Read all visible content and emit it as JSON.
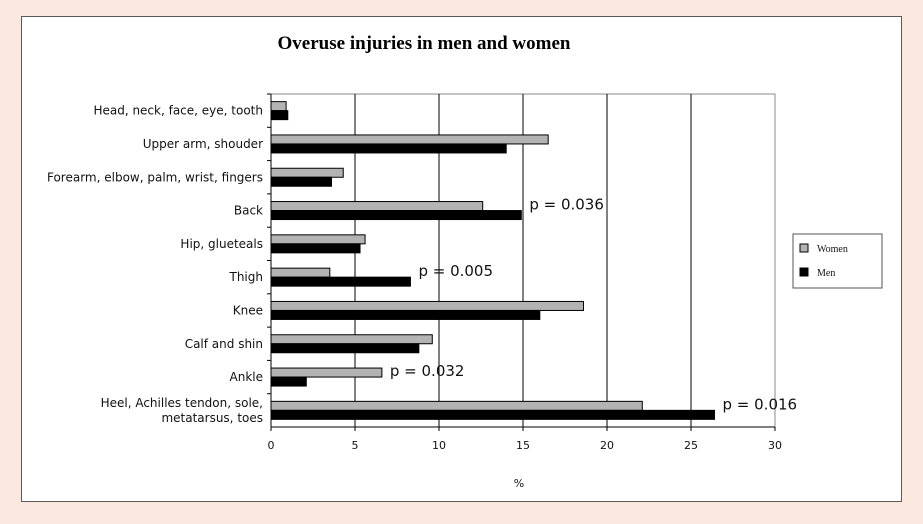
{
  "chart_data": {
    "type": "bar",
    "orientation": "horizontal",
    "title": "Overuse injuries in men and women",
    "xlabel": "%",
    "ylabel": "",
    "xlim": [
      0,
      30
    ],
    "xticks": [
      "0",
      "5",
      "10",
      "15",
      "20",
      "25",
      "30"
    ],
    "grid": "vertical",
    "legend_position": "right",
    "categories": [
      [
        "Head, neck, face, eye, tooth"
      ],
      [
        "Upper arm, shouder"
      ],
      [
        "Forearm, elbow, palm, wrist, fingers"
      ],
      [
        "Back"
      ],
      [
        "Hip, glueteals"
      ],
      [
        "Thigh"
      ],
      [
        "Knee"
      ],
      [
        "Calf and shin"
      ],
      [
        "Ankle"
      ],
      [
        "Heel, Achilles tendon, sole,",
        "metatarsus, toes"
      ]
    ],
    "series": [
      {
        "name": "Women",
        "color": "#b3b3b3",
        "values": [
          0.9,
          16.5,
          4.3,
          12.6,
          5.6,
          3.5,
          18.6,
          9.6,
          6.6,
          22.1
        ]
      },
      {
        "name": "Men",
        "color": "#000000",
        "values": [
          1.0,
          14.0,
          3.6,
          14.9,
          5.3,
          8.3,
          16.0,
          8.8,
          2.1,
          26.4
        ]
      }
    ],
    "annotations": [
      {
        "category_index": 3,
        "text": "p = 0.036"
      },
      {
        "category_index": 5,
        "text": "p = 0.005"
      },
      {
        "category_index": 8,
        "text": "p = 0.032"
      },
      {
        "category_index": 9,
        "text": "p = 0.016"
      }
    ]
  }
}
